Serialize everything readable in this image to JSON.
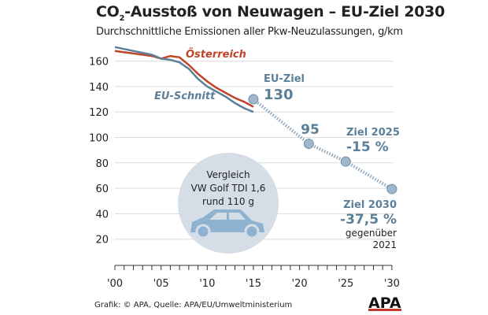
{
  "title_pre": "CO",
  "title_sub": "2",
  "title_post": "-Ausstoß von Neuwagen – EU-Ziel 2030",
  "subtitle": "Durchschnittliche Emissionen aller Pkw-Neuzulassungen, g/km",
  "source": "Grafik: © APA, Quelle: APA/EU/Umweltministerium",
  "logo": "APA",
  "chart_data": {
    "type": "line",
    "ylim": [
      0,
      170
    ],
    "xlim": [
      2000,
      2030
    ],
    "yticks": [
      20,
      40,
      60,
      80,
      100,
      120,
      140,
      160
    ],
    "xticks": [
      "'00",
      "'05",
      "'10",
      "'15",
      "'20",
      "'25",
      "'30"
    ],
    "grid": true,
    "series": [
      {
        "name": "Österreich",
        "color": "#c0442a",
        "x": [
          2000,
          2002,
          2004,
          2005,
          2006,
          2007,
          2008,
          2009,
          2010,
          2011,
          2012,
          2013,
          2014,
          2015
        ],
        "y": [
          168,
          166,
          164,
          162,
          164,
          163,
          157,
          150,
          144,
          139,
          135,
          131,
          128,
          124
        ]
      },
      {
        "name": "EU-Schnitt",
        "color": "#5b7f98",
        "x": [
          2000,
          2002,
          2004,
          2005,
          2006,
          2007,
          2008,
          2009,
          2010,
          2011,
          2012,
          2013,
          2014,
          2015
        ],
        "y": [
          171,
          168,
          165,
          162,
          161,
          159,
          154,
          146,
          140,
          136,
          132,
          127,
          123,
          120
        ]
      },
      {
        "name": "EU-Ziel",
        "color": "#8fa8bf",
        "style": "dotted",
        "x": [
          2015,
          2021,
          2025,
          2030
        ],
        "y": [
          130,
          95,
          81,
          59.4
        ]
      }
    ],
    "annotations": [
      {
        "x": 2015,
        "y": 130,
        "label": "EU-Ziel",
        "value": "130"
      },
      {
        "x": 2021,
        "y": 95,
        "value": "95"
      },
      {
        "x": 2025,
        "y": 81,
        "label": "Ziel 2025",
        "value": "-15 %"
      },
      {
        "x": 2030,
        "y": 59.4,
        "label": "Ziel 2030",
        "value": "-37,5 %",
        "note1": "gegenüber",
        "note2": "2021"
      }
    ],
    "callout": {
      "line1": "Vergleich",
      "line2": "VW Golf TDI 1,6",
      "line3": "rund 110 g"
    }
  }
}
